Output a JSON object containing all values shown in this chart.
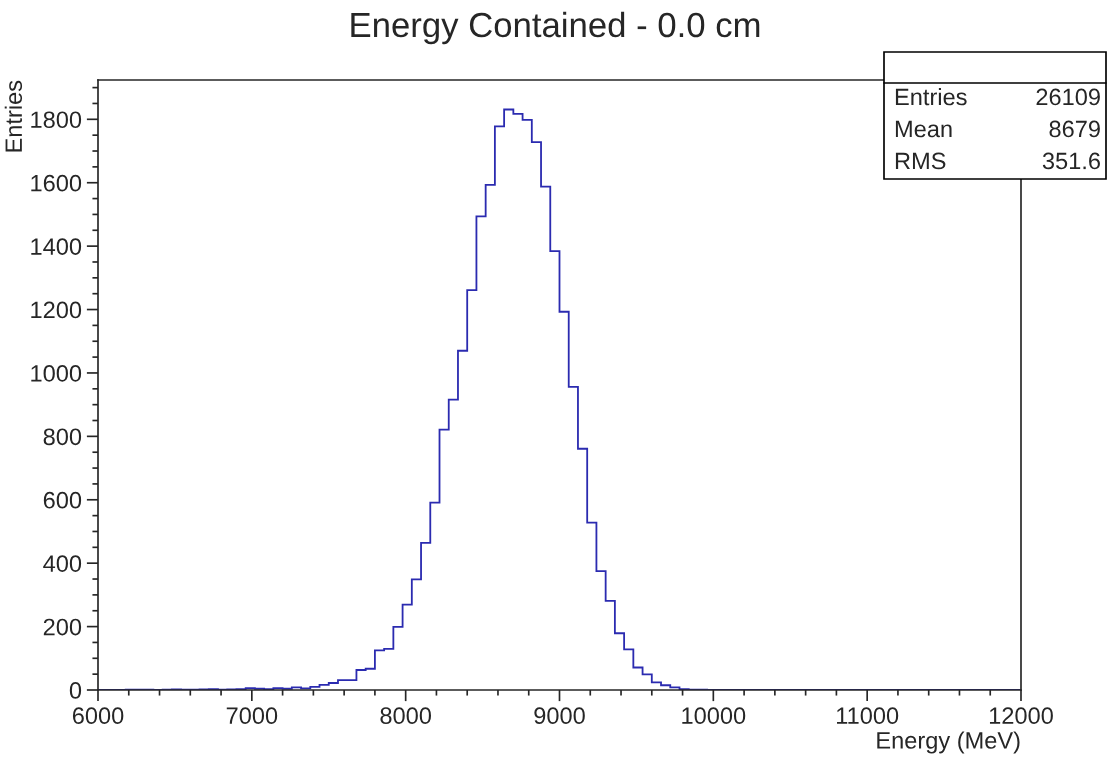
{
  "chart_data": {
    "type": "histogram",
    "title": "Energy Contained - 0.0 cm",
    "xlabel": "Energy (MeV)",
    "ylabel": "Entries",
    "bins": [
      6000,
      6060,
      6120,
      6180,
      6240,
      6300,
      6360,
      6420,
      6480,
      6540,
      6600,
      6660,
      6720,
      6780,
      6840,
      6900,
      6960,
      7020,
      7080,
      7140,
      7200,
      7260,
      7320,
      7380,
      7440,
      7500,
      7560,
      7620,
      7680,
      7740,
      7800,
      7860,
      7920,
      7980,
      8040,
      8100,
      8160,
      8220,
      8280,
      8340,
      8400,
      8460,
      8520,
      8580,
      8640,
      8700,
      8760,
      8820,
      8880,
      8940,
      9000,
      9060,
      9120,
      9180,
      9240,
      9300,
      9360,
      9420,
      9480,
      9540,
      9600,
      9660,
      9720,
      9780,
      9840,
      9900,
      9960,
      10020,
      10080,
      10140,
      10200,
      10260,
      10320,
      10380,
      10440,
      10500,
      10560,
      10620,
      10680,
      10740,
      10800,
      10860,
      10920,
      10980,
      11040,
      11100,
      11160,
      11220,
      11280,
      11340,
      11400,
      11460,
      11520,
      11580,
      11640,
      11700,
      11760,
      11820,
      11880,
      11940,
      12000
    ],
    "values": [
      0,
      0,
      0,
      1,
      1,
      1,
      0,
      1,
      2,
      1,
      1,
      2,
      3,
      1,
      2,
      3,
      6,
      4,
      3,
      6,
      4,
      8,
      5,
      10,
      16,
      22,
      31,
      31,
      63,
      67,
      125,
      130,
      199,
      269,
      349,
      464,
      591,
      821,
      916,
      1070,
      1261,
      1494,
      1593,
      1778,
      1831,
      1817,
      1798,
      1728,
      1588,
      1384,
      1193,
      956,
      761,
      528,
      375,
      281,
      179,
      128,
      71,
      49,
      24,
      15,
      8,
      3,
      1,
      1,
      0,
      0,
      0,
      0,
      0,
      0,
      0,
      0,
      0,
      0,
      0,
      0,
      0,
      0,
      0,
      0,
      0,
      0,
      0,
      0,
      0,
      0,
      0,
      0,
      0,
      0,
      0,
      0,
      0,
      0,
      0,
      0,
      0,
      0
    ],
    "color": "#2b2bb0",
    "xlim": [
      6000,
      12000
    ],
    "xticks": [
      6000,
      7000,
      8000,
      9000,
      10000,
      11000,
      12000
    ],
    "ylim": [
      0,
      1924
    ],
    "yticks": [
      0,
      200,
      400,
      600,
      800,
      1000,
      1200,
      1400,
      1600,
      1800
    ],
    "grid": false,
    "legend": false,
    "annotations": [
      "Entries",
      "26109",
      "Mean",
      "8679",
      "RMS",
      "351.6"
    ]
  }
}
